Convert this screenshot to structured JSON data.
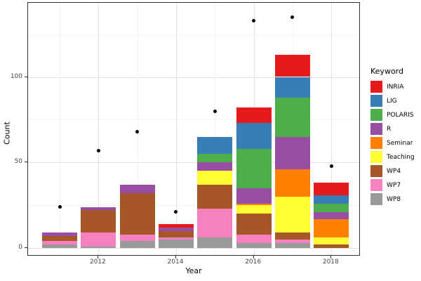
{
  "chart_data": {
    "type": "bar",
    "stacked": true,
    "title": "",
    "xlabel": "Year",
    "ylabel": "Count",
    "legend_title": "Keyword",
    "legend_position": "right",
    "grid": true,
    "x": [
      2011,
      2012,
      2013,
      2014,
      2015,
      2016,
      2017,
      2018
    ],
    "x_ticks": [
      2012,
      2014,
      2016,
      2018
    ],
    "y_ticks": [
      0,
      50,
      100
    ],
    "y_minor_ticks": [
      25,
      75,
      125
    ],
    "ylim": [
      0,
      143
    ],
    "series": [
      {
        "name": "INRIA",
        "color": "#E41A1C",
        "values": [
          0,
          0,
          0,
          2,
          0,
          9,
          13,
          7
        ]
      },
      {
        "name": "LIG",
        "color": "#377EB8",
        "values": [
          0,
          0,
          0,
          0,
          10,
          15,
          12,
          5
        ]
      },
      {
        "name": "POLARIS",
        "color": "#4DAF4A",
        "values": [
          0,
          0,
          0,
          0,
          5,
          23,
          23,
          5
        ]
      },
      {
        "name": "R",
        "color": "#984EA3",
        "values": [
          2,
          2,
          5,
          2,
          5,
          9,
          19,
          4
        ]
      },
      {
        "name": "Seminar",
        "color": "#FF7F00",
        "values": [
          0,
          0,
          0,
          0,
          0,
          1,
          16,
          11
        ]
      },
      {
        "name": "Teaching",
        "color": "#FFFF33",
        "values": [
          0,
          0,
          0,
          0,
          8,
          5,
          21,
          4
        ]
      },
      {
        "name": "WP4",
        "color": "#A65628",
        "values": [
          3,
          13,
          24,
          4,
          14,
          12,
          4,
          2
        ]
      },
      {
        "name": "WP7",
        "color": "#F781BF",
        "values": [
          2,
          8,
          4,
          1,
          17,
          5,
          2,
          0
        ]
      },
      {
        "name": "WP8",
        "color": "#999999",
        "values": [
          2,
          1,
          4,
          5,
          6,
          3,
          3,
          0
        ]
      }
    ],
    "bar_totals": [
      9,
      24,
      37,
      14,
      65,
      82,
      113,
      38
    ],
    "points": {
      "name": "yearly-total-points",
      "color": "#000000",
      "values": [
        24,
        57,
        68,
        21,
        80,
        133,
        135,
        48
      ]
    }
  }
}
